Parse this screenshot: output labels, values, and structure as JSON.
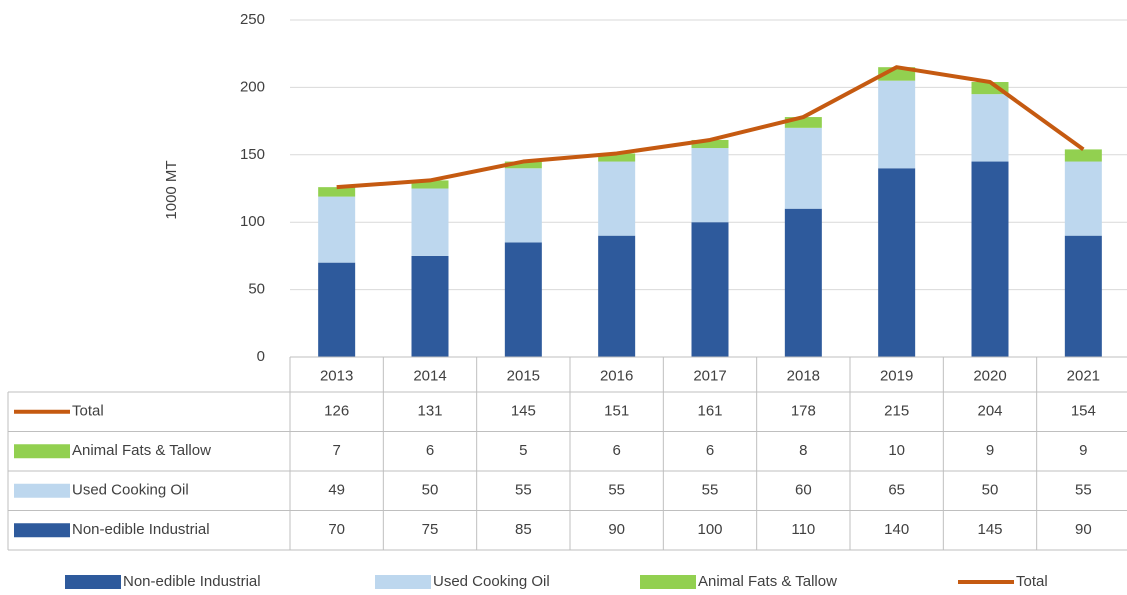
{
  "chart_data": {
    "type": "bar",
    "stacked": true,
    "y_label": "1000 MT",
    "categories": [
      "2013",
      "2014",
      "2015",
      "2016",
      "2017",
      "2018",
      "2019",
      "2020",
      "2021"
    ],
    "series": [
      {
        "name": "Non-edible Industrial",
        "color": "#2e5a9c",
        "values": [
          70,
          75,
          85,
          90,
          100,
          110,
          140,
          145,
          90
        ]
      },
      {
        "name": "Used Cooking Oil",
        "color": "#bdd7ee",
        "values": [
          49,
          50,
          55,
          55,
          55,
          60,
          65,
          50,
          55
        ]
      },
      {
        "name": "Animal Fats & Tallow",
        "color": "#92d050",
        "values": [
          7,
          6,
          5,
          6,
          6,
          8,
          10,
          9,
          9
        ]
      },
      {
        "name": "Total",
        "color": "#c55a11",
        "type": "line",
        "values": [
          126,
          131,
          145,
          151,
          161,
          178,
          215,
          204,
          154
        ]
      }
    ],
    "ylim": [
      0,
      250
    ],
    "yticks": [
      0,
      50,
      100,
      150,
      200,
      250
    ],
    "grid": true,
    "data_table": true,
    "legend": "bottom"
  }
}
